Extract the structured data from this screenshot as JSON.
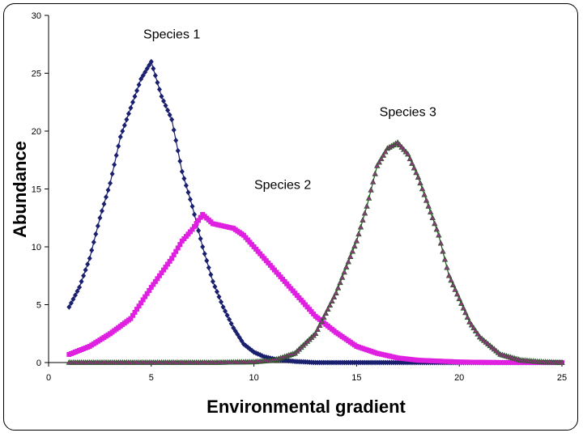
{
  "chart_data": {
    "type": "line",
    "xlabel": "Environmental gradient",
    "ylabel": "Abundance",
    "xlim": [
      0,
      25
    ],
    "ylim": [
      0,
      30
    ],
    "xticks": [
      0,
      5,
      10,
      15,
      20,
      25
    ],
    "yticks": [
      0,
      5,
      10,
      15,
      20,
      25,
      30
    ],
    "grid": false,
    "legend": "none",
    "annotations": [
      {
        "text": "Species 1",
        "x": 6,
        "y": 28
      },
      {
        "text": "Species 2",
        "x": 11.4,
        "y": 15
      },
      {
        "text": "Species 3",
        "x": 17.5,
        "y": 21.3
      }
    ],
    "series": [
      {
        "name": "Species 1",
        "color": "#1a1f6e",
        "marker": "diamond",
        "x": [
          1.0,
          1.5,
          2.0,
          2.5,
          3.0,
          3.5,
          4.0,
          4.5,
          5.0,
          5.5,
          6.0,
          6.5,
          7.0,
          7.5,
          8.0,
          8.5,
          9.0,
          9.5,
          10.0,
          10.5,
          11.0,
          11.5,
          12.0,
          12.5,
          13.0,
          14.0,
          15.0,
          17.0,
          20.0,
          25.0
        ],
        "y": [
          4.8,
          6.5,
          9.0,
          12.5,
          15.5,
          19.5,
          22.0,
          24.5,
          26.0,
          23.0,
          21.0,
          16.5,
          13.5,
          10.0,
          7.0,
          4.8,
          3.0,
          1.6,
          0.9,
          0.5,
          0.3,
          0.2,
          0.1,
          0.05,
          0.0,
          0.0,
          0.0,
          0.0,
          0.0,
          0.0
        ]
      },
      {
        "name": "Species 2",
        "color": "#e020e0",
        "marker": "square",
        "x": [
          1.0,
          2.0,
          3.0,
          4.0,
          5.0,
          6.0,
          6.5,
          7.0,
          7.5,
          8.0,
          8.5,
          9.0,
          9.5,
          10.0,
          11.0,
          12.0,
          13.0,
          14.0,
          15.0,
          16.0,
          17.0,
          18.0,
          20.0,
          22.0,
          25.0
        ],
        "y": [
          0.7,
          1.4,
          2.5,
          3.8,
          6.5,
          9.0,
          10.5,
          11.5,
          12.8,
          12.0,
          11.8,
          11.6,
          11.0,
          10.0,
          8.0,
          6.0,
          4.0,
          2.6,
          1.4,
          0.8,
          0.4,
          0.2,
          0.05,
          0.0,
          0.0
        ]
      },
      {
        "name": "Species 3",
        "color": "#1a5a1a",
        "marker": "triangle",
        "x": [
          1.0,
          8.0,
          10.0,
          11.0,
          12.0,
          13.0,
          14.0,
          15.0,
          15.5,
          16.0,
          16.5,
          17.0,
          17.5,
          18.0,
          18.5,
          19.0,
          19.5,
          20.0,
          20.5,
          21.0,
          22.0,
          23.0,
          24.0,
          25.0
        ],
        "y": [
          0.0,
          0.0,
          0.05,
          0.2,
          0.8,
          2.5,
          6.0,
          10.5,
          13.5,
          17.0,
          18.5,
          19.0,
          18.0,
          16.0,
          13.5,
          11.0,
          7.5,
          5.5,
          3.5,
          2.2,
          0.7,
          0.2,
          0.05,
          0.0
        ]
      }
    ]
  }
}
